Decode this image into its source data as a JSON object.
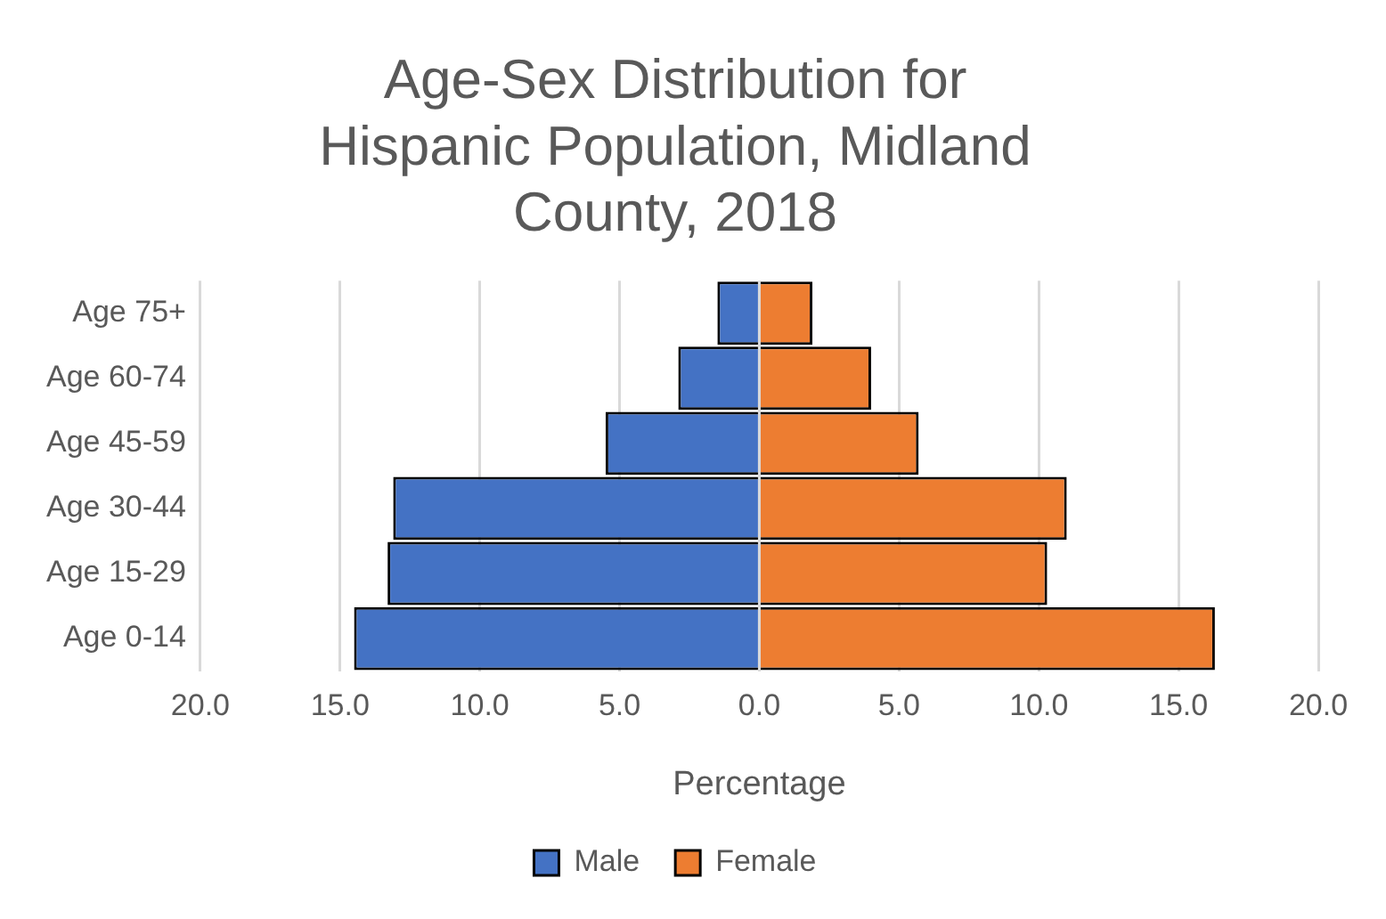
{
  "chart_data": {
    "type": "bar",
    "orientation": "horizontal",
    "stacked": true,
    "title": "Age-Sex Distribution for Hispanic Population, Midland County, 2018",
    "xlabel": "Percentage",
    "categories": [
      "Age 75+",
      "Age 60-74",
      "Age 45-59",
      "Age 30-44",
      "Age 15-29",
      "Age 0-14"
    ],
    "series": [
      {
        "name": "Male",
        "color": "#4472c4",
        "values": [
          -1.5,
          -2.9,
          -5.5,
          -13.1,
          -13.3,
          -14.5
        ]
      },
      {
        "name": "Female",
        "color": "#ed7d31",
        "values": [
          1.9,
          4.0,
          5.7,
          11.0,
          10.3,
          16.3
        ]
      }
    ],
    "xlim": [
      -20,
      20
    ],
    "xticks": [
      {
        "value": -20,
        "label": "20.0"
      },
      {
        "value": -15,
        "label": "15.0"
      },
      {
        "value": -10,
        "label": "10.0"
      },
      {
        "value": -5,
        "label": "5.0"
      },
      {
        "value": 0,
        "label": "0.0"
      },
      {
        "value": 5,
        "label": "5.0"
      },
      {
        "value": 10,
        "label": "10.0"
      },
      {
        "value": 15,
        "label": "15.0"
      },
      {
        "value": 20,
        "label": "20.0"
      }
    ],
    "grid": "x",
    "legend": "bottom"
  }
}
